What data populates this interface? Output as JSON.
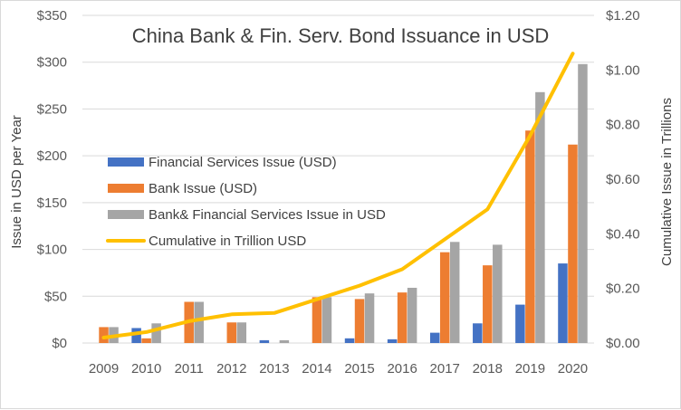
{
  "chart_data": {
    "type": "bar",
    "title": "China Bank & Fin. Serv. Bond Issuance in USD",
    "ylabel": "Issue in USD per Year",
    "y2label": "Cumulative Issue in Trillions",
    "categories": [
      "2009",
      "2010",
      "2011",
      "2012",
      "2013",
      "2014",
      "2015",
      "2016",
      "2017",
      "2018",
      "2019",
      "2020"
    ],
    "ylim": [
      0,
      350
    ],
    "y_ticks": [
      "$0",
      "$50",
      "$100",
      "$150",
      "$200",
      "$250",
      "$300",
      "$350"
    ],
    "y2lim": [
      0,
      1.2
    ],
    "y2_ticks": [
      "$0.00",
      "$0.20",
      "$0.40",
      "$0.60",
      "$0.80",
      "$1.00",
      "$1.20"
    ],
    "grid": true,
    "legend_position": "center-left",
    "series": [
      {
        "name": "Financial Services Issue (USD)",
        "kind": "bar",
        "axis": "left",
        "color": "#4472C4",
        "values": [
          0,
          16,
          0,
          0,
          3,
          0,
          5,
          4,
          11,
          21,
          41,
          85
        ]
      },
      {
        "name": "Bank Issue (USD)",
        "kind": "bar",
        "axis": "left",
        "color": "#ED7D31",
        "values": [
          17,
          5,
          44,
          22,
          0,
          49,
          47,
          54,
          97,
          83,
          227,
          212
        ]
      },
      {
        "name": "Bank& Financial Services Issue in USD",
        "kind": "bar",
        "axis": "left",
        "color": "#A5A5A5",
        "values": [
          17,
          21,
          44,
          22,
          3,
          49,
          53,
          59,
          108,
          105,
          268,
          298
        ]
      },
      {
        "name": "Cumulative in Trillion USD",
        "kind": "line",
        "axis": "right",
        "color": "#FFC000",
        "values": [
          0.02,
          0.04,
          0.08,
          0.105,
          0.11,
          0.16,
          0.21,
          0.27,
          0.38,
          0.49,
          0.76,
          1.06
        ]
      }
    ]
  }
}
